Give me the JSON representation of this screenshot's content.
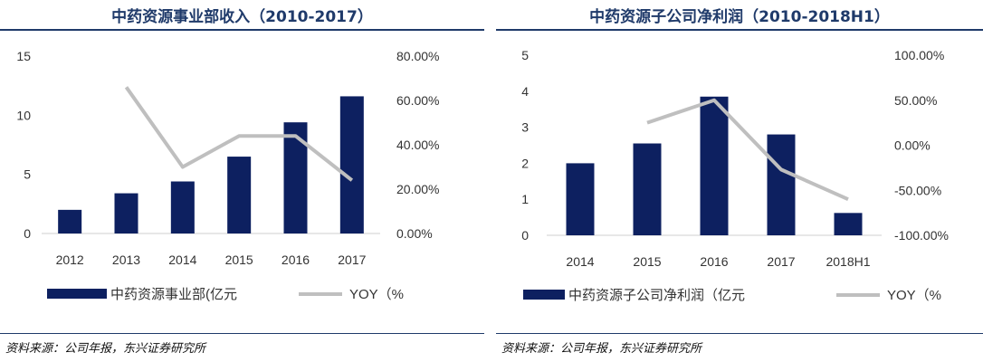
{
  "chart_data": [
    {
      "type": "bar",
      "title": "中药资源事业部收入（2010-2017）",
      "categories": [
        "2012",
        "2013",
        "2014",
        "2015",
        "2016",
        "2017"
      ],
      "series": [
        {
          "name": "中药资源事业部(亿元",
          "type": "bar",
          "axis": "left",
          "values": [
            2.0,
            3.4,
            4.4,
            6.5,
            9.4,
            11.6
          ],
          "color": "#0d2060"
        },
        {
          "name": "YOY（%",
          "type": "line",
          "axis": "right",
          "values": [
            null,
            0.66,
            0.3,
            0.44,
            0.44,
            0.24
          ],
          "color": "#bfbfbf"
        }
      ],
      "ylim": [
        0,
        15
      ],
      "y_ticks": [
        "0",
        "5",
        "10",
        "15"
      ],
      "y2lim": [
        0,
        0.8
      ],
      "y2_ticks": [
        "0.00%",
        "20.00%",
        "40.00%",
        "60.00%",
        "80.00%"
      ],
      "legend_position": "bottom"
    },
    {
      "type": "bar",
      "title": "中药资源子公司净利润（2010-2018H1）",
      "categories": [
        "2014",
        "2015",
        "2016",
        "2017",
        "2018H1"
      ],
      "series": [
        {
          "name": "中药资源子公司净利润（亿元",
          "type": "bar",
          "axis": "left",
          "values": [
            2.0,
            2.55,
            3.85,
            2.8,
            0.62
          ],
          "color": "#0d2060"
        },
        {
          "name": "YOY（%",
          "type": "line",
          "axis": "right",
          "values": [
            null,
            0.25,
            0.5,
            -0.27,
            -0.6
          ],
          "color": "#bfbfbf"
        }
      ],
      "ylim": [
        0,
        5
      ],
      "y_ticks": [
        "0",
        "1",
        "2",
        "3",
        "4",
        "5"
      ],
      "y2lim": [
        -1.0,
        1.0
      ],
      "y2_ticks": [
        "-100.00%",
        "-50.00%",
        "0.00%",
        "50.00%",
        "100.00%"
      ],
      "legend_position": "bottom"
    }
  ],
  "footer": {
    "left_source": "资料来源：公司年报，东兴证券研究所",
    "right_source": "资料来源：公司年报，东兴证券研究所"
  }
}
